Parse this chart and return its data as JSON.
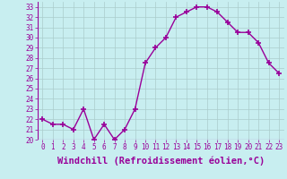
{
  "x": [
    0,
    1,
    2,
    3,
    4,
    5,
    6,
    7,
    8,
    9,
    10,
    11,
    12,
    13,
    14,
    15,
    16,
    17,
    18,
    19,
    20,
    21,
    22,
    23
  ],
  "y": [
    22.0,
    21.5,
    21.5,
    21.0,
    23.0,
    20.0,
    21.5,
    20.0,
    21.0,
    23.0,
    27.5,
    29.0,
    30.0,
    32.0,
    32.5,
    33.0,
    33.0,
    32.5,
    31.5,
    30.5,
    30.5,
    29.5,
    27.5,
    26.5
  ],
  "line_color": "#990099",
  "marker": "+",
  "marker_size": 4,
  "bg_color": "#c8eef0",
  "grid_color": "#aacccc",
  "xlabel": "Windchill (Refroidissement éolien,°C)",
  "xlim": [
    -0.5,
    23.5
  ],
  "ylim": [
    20,
    33.5
  ],
  "xticks": [
    0,
    1,
    2,
    3,
    4,
    5,
    6,
    7,
    8,
    9,
    10,
    11,
    12,
    13,
    14,
    15,
    16,
    17,
    18,
    19,
    20,
    21,
    22,
    23
  ],
  "yticks": [
    20,
    21,
    22,
    23,
    24,
    25,
    26,
    27,
    28,
    29,
    30,
    31,
    32,
    33
  ],
  "xlabel_fontsize": 7.5,
  "tick_fontsize": 5.5,
  "line_width": 1.0,
  "marker_linewidth": 1.2
}
